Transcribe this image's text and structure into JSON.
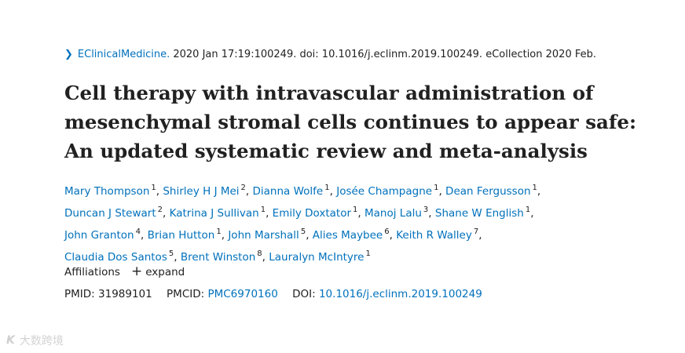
{
  "citation": {
    "journal": "EClinicalMedicine.",
    "details": " 2020 Jan 17:19:100249. doi: 10.1016/j.eclinm.2019.100249. eCollection 2020 Feb."
  },
  "title_lines": [
    "Cell therapy with intravascular administration of",
    "mesenchymal stromal cells continues to appear safe:",
    "An updated systematic review and meta-analysis"
  ],
  "authors": [
    {
      "name": "Mary Thompson",
      "aff": "1"
    },
    {
      "name": "Shirley H J Mei",
      "aff": "2"
    },
    {
      "name": "Dianna Wolfe",
      "aff": "1"
    },
    {
      "name": "Josée Champagne",
      "aff": "1"
    },
    {
      "name": "Dean Fergusson",
      "aff": "1"
    },
    {
      "name": "Duncan J Stewart",
      "aff": "2"
    },
    {
      "name": "Katrina J Sullivan",
      "aff": "1"
    },
    {
      "name": "Emily Doxtator",
      "aff": "1"
    },
    {
      "name": "Manoj Lalu",
      "aff": "3"
    },
    {
      "name": "Shane W English",
      "aff": "1"
    },
    {
      "name": "John Granton",
      "aff": "4"
    },
    {
      "name": "Brian Hutton",
      "aff": "1"
    },
    {
      "name": "John Marshall",
      "aff": "5"
    },
    {
      "name": "Alies Maybee",
      "aff": "6"
    },
    {
      "name": "Keith R Walley",
      "aff": "7"
    },
    {
      "name": "Claudia Dos Santos",
      "aff": "5"
    },
    {
      "name": "Brent Winston",
      "aff": "8"
    },
    {
      "name": "Lauralyn McIntyre",
      "aff": "1"
    }
  ],
  "author_line_breaks_after": [
    4,
    9,
    14
  ],
  "affiliations": {
    "label": "Affiliations",
    "expand": "expand"
  },
  "ids": {
    "pmid_label": "PMID:",
    "pmid": "31989101",
    "pmcid_label": "PMCID:",
    "pmcid": "PMC6970160",
    "doi_label": "DOI:",
    "doi": "10.1016/j.eclinm.2019.100249"
  },
  "watermark": {
    "logo": "K",
    "text": "大数跨境"
  },
  "colors": {
    "link": "#0071bc",
    "text": "#212121"
  }
}
